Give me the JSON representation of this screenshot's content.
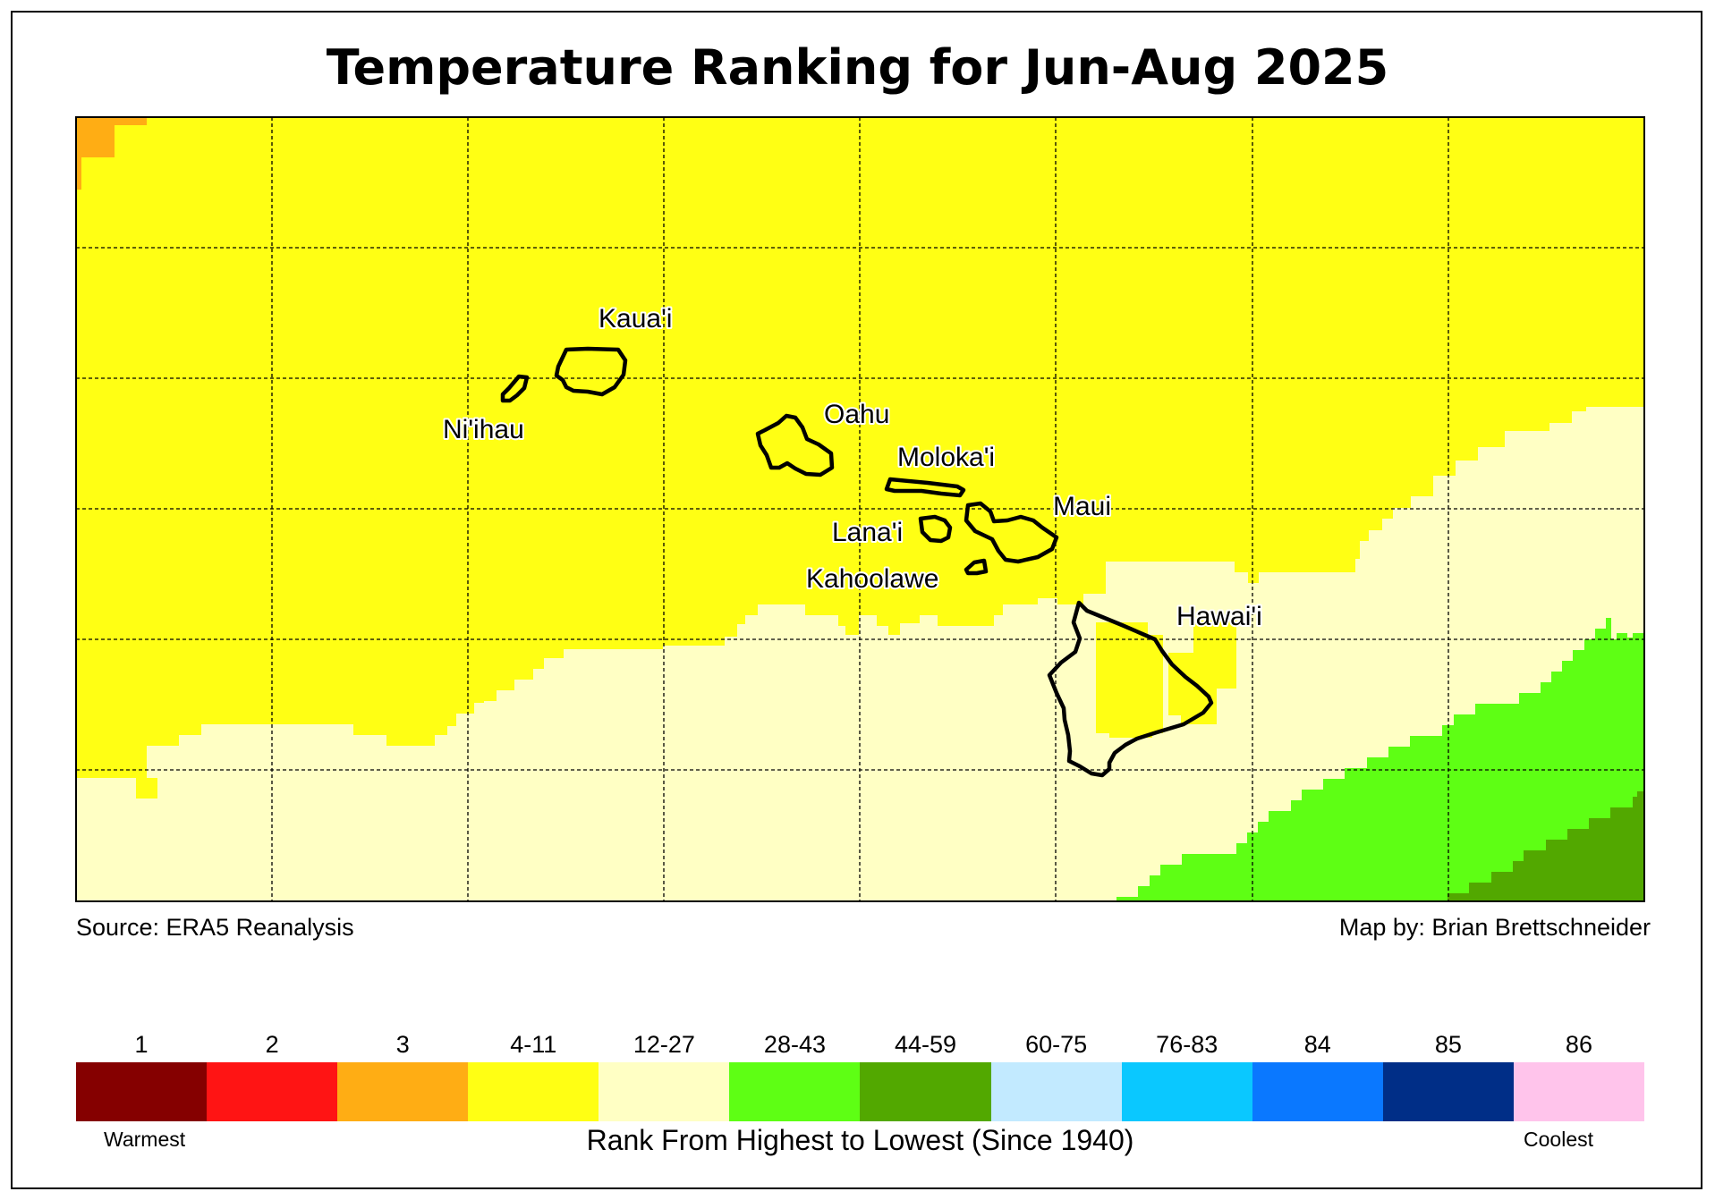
{
  "title": "Temperature Ranking for Jun-Aug 2025",
  "source": "Source: ERA5 Reanalysis",
  "credit": "Map by: Brian Brettschneider",
  "islands": [
    {
      "name": "Kaua'i"
    },
    {
      "name": "Ni'ihau"
    },
    {
      "name": "Oahu"
    },
    {
      "name": "Moloka'i"
    },
    {
      "name": "Maui"
    },
    {
      "name": "Lana'i"
    },
    {
      "name": "Kahoolawe"
    },
    {
      "name": "Hawai'i"
    }
  ],
  "legend": {
    "title": "Rank From Highest to Lowest (Since 1940)",
    "warm_label": "Warmest",
    "cool_label": "Coolest",
    "classes": [
      {
        "label": "1",
        "color": "#850000"
      },
      {
        "label": "2",
        "color": "#ff1414"
      },
      {
        "label": "3",
        "color": "#ffad14"
      },
      {
        "label": "4-11",
        "color": "#ffff14"
      },
      {
        "label": "12-27",
        "color": "#ffffc4"
      },
      {
        "label": "28-43",
        "color": "#5eff14"
      },
      {
        "label": "44-59",
        "color": "#52a800"
      },
      {
        "label": "60-75",
        "color": "#c2eaff"
      },
      {
        "label": "76-83",
        "color": "#0ac8ff"
      },
      {
        "label": "84",
        "color": "#0a78ff"
      },
      {
        "label": "85",
        "color": "#002e87"
      },
      {
        "label": "86",
        "color": "#ffc4eb"
      }
    ]
  }
}
